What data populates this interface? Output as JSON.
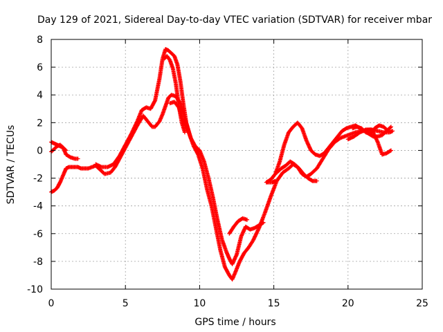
{
  "chart_data": {
    "type": "scatter",
    "title": "Day 129 of 2021, Sidereal Day-to-day VTEC variation (SDTVAR) for receiver mbar",
    "xlabel": "GPS time / hours",
    "ylabel": "SDTVAR / TECUs",
    "xlim": [
      0,
      25
    ],
    "ylim": [
      -10,
      8
    ],
    "xticks": [
      0,
      5,
      10,
      15,
      20,
      25
    ],
    "yticks": [
      -10,
      -8,
      -6,
      -4,
      -2,
      0,
      2,
      4,
      6,
      8
    ],
    "grid": true,
    "marker": "+",
    "color": "#ff0000",
    "series": [
      {
        "x": [
          0.0,
          0.2,
          0.4,
          0.6,
          0.8,
          1.0,
          1.2,
          1.5,
          1.8,
          2.0,
          2.5,
          3.0,
          3.3,
          3.6,
          4.0,
          4.3,
          4.6,
          5.0,
          5.4,
          5.8,
          6.2,
          6.5,
          6.8,
          7.0,
          7.3,
          7.5,
          7.7,
          7.9,
          8.1,
          8.4,
          8.7,
          9.0,
          9.3,
          9.6,
          9.9,
          10.2,
          10.5,
          10.8,
          11.1,
          11.4,
          11.7,
          12.0,
          12.2,
          12.4,
          12.7,
          13.0,
          13.3,
          13.6,
          14.0,
          14.4,
          14.8,
          15.2,
          15.6,
          16.0,
          16.3,
          16.6,
          16.9,
          17.2,
          17.5,
          17.9,
          18.3,
          18.7,
          19.1,
          19.5,
          20.0,
          20.5,
          21.0,
          21.5,
          22.0,
          22.4,
          22.8,
          23.0
        ],
        "y": [
          -3.0,
          -2.9,
          -2.7,
          -2.3,
          -1.8,
          -1.3,
          -1.2,
          -1.2,
          -1.2,
          -1.3,
          -1.3,
          -1.1,
          -1.4,
          -1.7,
          -1.6,
          -1.2,
          -0.6,
          0.2,
          1.0,
          1.8,
          2.5,
          2.1,
          1.7,
          1.7,
          2.1,
          2.6,
          3.2,
          3.8,
          4.0,
          3.9,
          3.4,
          2.3,
          1.2,
          0.3,
          -0.3,
          -1.3,
          -2.8,
          -4.0,
          -5.6,
          -7.2,
          -8.4,
          -9.0,
          -9.3,
          -8.8,
          -8.0,
          -7.4,
          -7.0,
          -6.5,
          -5.6,
          -4.5,
          -3.3,
          -2.2,
          -1.6,
          -1.3,
          -1.0,
          -1.2,
          -1.7,
          -1.9,
          -1.7,
          -1.3,
          -0.6,
          0.1,
          0.6,
          0.9,
          1.1,
          1.3,
          1.4,
          1.5,
          1.4,
          1.3,
          1.3,
          1.4
        ]
      },
      {
        "x": [
          0.0,
          0.2,
          0.4,
          0.6,
          0.8,
          1.0,
          1.3,
          1.6,
          1.8
        ],
        "y": [
          0.6,
          0.5,
          0.4,
          0.3,
          0.2,
          -0.3,
          -0.5,
          -0.6,
          -0.6
        ]
      },
      {
        "x": [
          0.0,
          0.2,
          0.4,
          0.6,
          0.8,
          1.0
        ],
        "y": [
          -0.1,
          0.1,
          0.3,
          0.4,
          0.2,
          0.0
        ]
      },
      {
        "x": [
          3.0,
          3.4,
          3.8,
          4.2,
          4.6,
          5.0,
          5.4,
          5.8,
          6.1,
          6.4,
          6.7,
          7.0,
          7.3,
          7.5,
          7.7,
          7.9,
          8.1,
          8.3,
          8.5,
          8.7,
          8.9,
          9.1,
          9.4,
          9.7,
          10.0,
          10.3,
          10.6,
          10.9,
          11.2,
          11.5,
          11.8,
          12.0,
          12.2,
          12.5,
          12.8,
          13.1,
          13.4,
          13.7,
          14.0,
          14.3
        ],
        "y": [
          -1.0,
          -1.2,
          -1.2,
          -1.0,
          -0.4,
          0.4,
          1.2,
          2.1,
          2.9,
          3.1,
          3.0,
          3.6,
          5.2,
          6.6,
          7.3,
          7.2,
          7.0,
          6.8,
          6.2,
          5.0,
          3.4,
          2.0,
          0.9,
          0.3,
          0.0,
          -0.8,
          -2.0,
          -3.4,
          -5.0,
          -6.4,
          -7.3,
          -7.8,
          -8.2,
          -7.5,
          -6.2,
          -5.5,
          -5.7,
          -5.6,
          -5.4,
          -5.2
        ]
      },
      {
        "x": [
          7.6,
          7.8,
          8.0,
          8.2,
          8.4,
          8.6,
          8.8,
          9.0
        ],
        "y": [
          6.6,
          6.8,
          6.5,
          5.9,
          4.8,
          3.2,
          2.0,
          1.3
        ]
      },
      {
        "x": [
          8.0,
          8.3,
          8.6,
          8.9,
          9.2
        ],
        "y": [
          3.4,
          3.5,
          3.1,
          2.1,
          1.4
        ]
      },
      {
        "x": [
          12.0,
          12.3,
          12.6,
          12.9,
          13.2
        ],
        "y": [
          -6.0,
          -5.5,
          -5.1,
          -4.9,
          -5.0
        ]
      },
      {
        "x": [
          14.5,
          14.8,
          15.1,
          15.4,
          15.7,
          16.0,
          16.3,
          16.6,
          16.9,
          17.2,
          17.5,
          17.8,
          18.1,
          18.4,
          18.7,
          19.0,
          19.3,
          19.6,
          19.9,
          20.2,
          20.5,
          20.8,
          21.1,
          21.4,
          21.7,
          22.0,
          22.3,
          22.6,
          22.9
        ],
        "y": [
          -2.3,
          -2.1,
          -1.7,
          -0.8,
          0.4,
          1.3,
          1.7,
          2.0,
          1.6,
          0.7,
          0.0,
          -0.3,
          -0.4,
          -0.2,
          0.2,
          0.6,
          1.0,
          1.4,
          1.6,
          1.7,
          1.8,
          1.6,
          1.4,
          1.2,
          1.0,
          1.0,
          1.1,
          1.4,
          1.7
        ]
      },
      {
        "x": [
          15.2,
          15.5,
          15.8,
          16.1,
          16.4,
          16.7,
          17.0,
          17.3,
          17.6,
          17.9
        ],
        "y": [
          -1.6,
          -1.3,
          -1.1,
          -0.8,
          -1.0,
          -1.3,
          -1.7,
          -2.0,
          -2.2,
          -2.2
        ]
      },
      {
        "x": [
          14.5,
          14.7,
          14.9,
          15.1
        ],
        "y": [
          -2.3,
          -2.3,
          -2.3,
          -2.2
        ]
      },
      {
        "x": [
          20.0,
          20.4,
          20.8,
          21.2,
          21.6,
          22.0,
          22.3,
          22.6,
          22.9
        ],
        "y": [
          0.8,
          1.0,
          1.3,
          1.5,
          1.5,
          0.6,
          -0.3,
          -0.2,
          0.0
        ]
      },
      {
        "x": [
          20.3,
          20.6,
          20.9,
          21.2,
          21.5,
          21.8,
          22.1,
          22.4,
          22.7
        ],
        "y": [
          1.6,
          1.7,
          1.6,
          1.3,
          1.2,
          1.6,
          1.8,
          1.7,
          1.4
        ]
      }
    ]
  }
}
